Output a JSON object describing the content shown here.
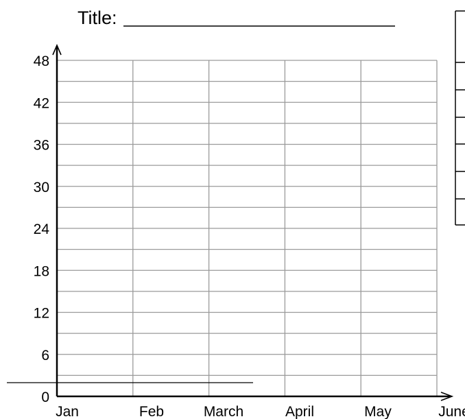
{
  "chart_data": {
    "type": "bar",
    "title": "Title:",
    "categories": [
      "Jan",
      "Feb",
      "March",
      "April",
      "May",
      "June"
    ],
    "series": [],
    "xlabel": "",
    "ylabel": "",
    "ylim": [
      0,
      48
    ],
    "yticks": [
      "0",
      "6",
      "12",
      "18",
      "24",
      "30",
      "36",
      "42",
      "48"
    ],
    "grid": true,
    "legend_table_rows": 6
  }
}
